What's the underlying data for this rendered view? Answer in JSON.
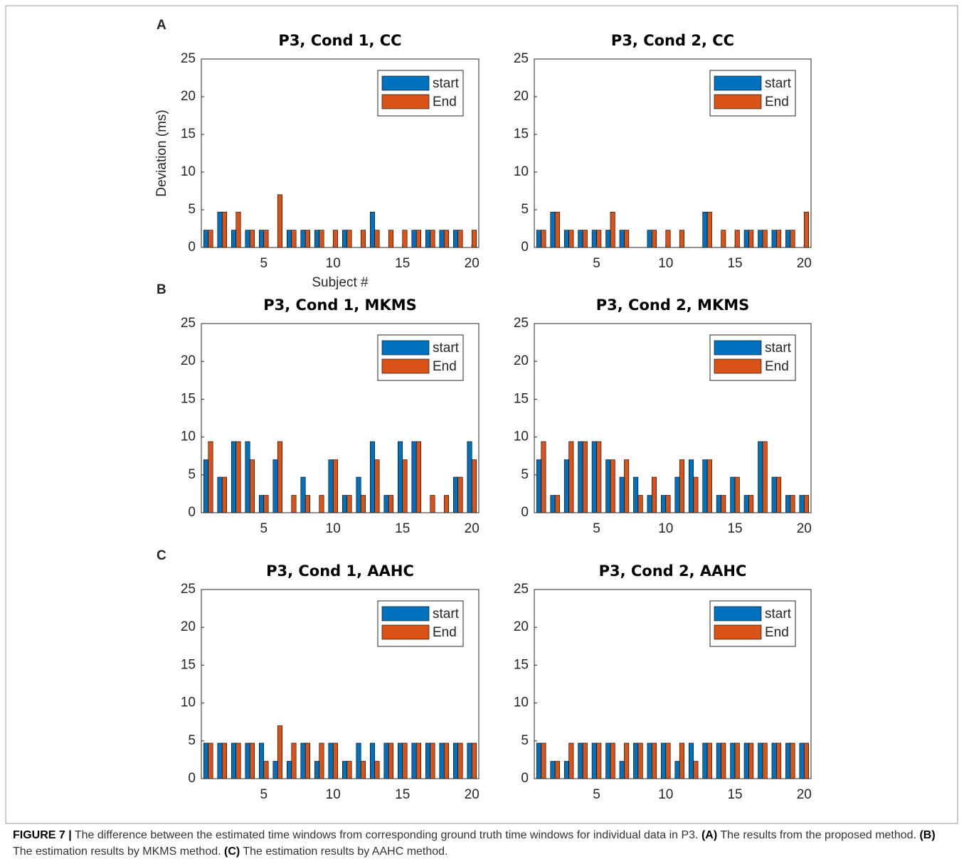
{
  "panels": [
    "A",
    "B",
    "C"
  ],
  "chart_data": [
    {
      "type": "bar",
      "title": "P3, Cond 1, CC",
      "ylabel": "Deviation (ms)",
      "xlabel": "Subject #",
      "x": [
        1,
        2,
        3,
        4,
        5,
        6,
        7,
        8,
        9,
        10,
        11,
        12,
        13,
        14,
        15,
        16,
        17,
        18,
        19,
        20
      ],
      "xlim": [
        0.5,
        20.5
      ],
      "xticks": [
        5,
        10,
        15,
        20
      ],
      "ylim": [
        0,
        25
      ],
      "yticks": [
        0,
        5,
        10,
        15,
        20,
        25
      ],
      "legend": "upper right",
      "series": [
        {
          "name": "start",
          "color": "#0072bd",
          "values": [
            2.3,
            4.7,
            2.3,
            2.3,
            2.3,
            0,
            2.3,
            2.3,
            2.3,
            0,
            2.3,
            0,
            4.7,
            0,
            0,
            2.3,
            2.3,
            2.3,
            2.3,
            0
          ]
        },
        {
          "name": "End",
          "color": "#d95319",
          "values": [
            2.3,
            4.7,
            4.7,
            2.3,
            2.3,
            7.0,
            2.3,
            2.3,
            2.3,
            2.3,
            2.3,
            2.3,
            2.3,
            2.3,
            2.3,
            2.3,
            2.3,
            2.3,
            2.3,
            2.3
          ]
        }
      ]
    },
    {
      "type": "bar",
      "title": "P3, Cond 2, CC",
      "x": [
        1,
        2,
        3,
        4,
        5,
        6,
        7,
        8,
        9,
        10,
        11,
        12,
        13,
        14,
        15,
        16,
        17,
        18,
        19,
        20
      ],
      "xlim": [
        0.5,
        20.5
      ],
      "xticks": [
        5,
        10,
        15,
        20
      ],
      "ylim": [
        0,
        25
      ],
      "yticks": [
        0,
        5,
        10,
        15,
        20,
        25
      ],
      "legend": "upper right",
      "series": [
        {
          "name": "start",
          "color": "#0072bd",
          "values": [
            2.3,
            4.7,
            2.3,
            2.3,
            2.3,
            2.3,
            2.3,
            0,
            2.3,
            0,
            0,
            0,
            4.7,
            0,
            0,
            2.3,
            2.3,
            2.3,
            2.3,
            0
          ]
        },
        {
          "name": "End",
          "color": "#d95319",
          "values": [
            2.3,
            4.7,
            2.3,
            2.3,
            2.3,
            4.7,
            2.3,
            0,
            2.3,
            2.3,
            2.3,
            0,
            4.7,
            2.3,
            2.3,
            2.3,
            2.3,
            2.3,
            2.3,
            4.7
          ]
        }
      ]
    },
    {
      "type": "bar",
      "title": "P3, Cond 1, MKMS",
      "x": [
        1,
        2,
        3,
        4,
        5,
        6,
        7,
        8,
        9,
        10,
        11,
        12,
        13,
        14,
        15,
        16,
        17,
        18,
        19,
        20
      ],
      "xlim": [
        0.5,
        20.5
      ],
      "xticks": [
        5,
        10,
        15,
        20
      ],
      "ylim": [
        0,
        25
      ],
      "yticks": [
        0,
        5,
        10,
        15,
        20,
        25
      ],
      "legend": "upper right",
      "series": [
        {
          "name": "start",
          "color": "#0072bd",
          "values": [
            7.0,
            4.7,
            9.4,
            9.4,
            2.3,
            7.0,
            0,
            4.7,
            0,
            7.0,
            2.3,
            4.7,
            9.4,
            2.3,
            9.4,
            9.4,
            0,
            0,
            4.7,
            9.4
          ]
        },
        {
          "name": "End",
          "color": "#d95319",
          "values": [
            9.4,
            4.7,
            9.4,
            7.0,
            2.3,
            9.4,
            2.3,
            2.3,
            2.3,
            7.0,
            2.3,
            2.3,
            7.0,
            2.3,
            7.0,
            9.4,
            2.3,
            2.3,
            4.7,
            7.0
          ]
        }
      ]
    },
    {
      "type": "bar",
      "title": "P3, Cond 2, MKMS",
      "x": [
        1,
        2,
        3,
        4,
        5,
        6,
        7,
        8,
        9,
        10,
        11,
        12,
        13,
        14,
        15,
        16,
        17,
        18,
        19,
        20
      ],
      "xlim": [
        0.5,
        20.5
      ],
      "xticks": [
        5,
        10,
        15,
        20
      ],
      "ylim": [
        0,
        25
      ],
      "yticks": [
        0,
        5,
        10,
        15,
        20,
        25
      ],
      "legend": "upper right",
      "series": [
        {
          "name": "start",
          "color": "#0072bd",
          "values": [
            7.0,
            2.3,
            7.0,
            9.4,
            9.4,
            7.0,
            4.7,
            4.7,
            2.3,
            2.3,
            4.7,
            7.0,
            7.0,
            2.3,
            4.7,
            2.3,
            9.4,
            4.7,
            2.3,
            2.3
          ]
        },
        {
          "name": "End",
          "color": "#d95319",
          "values": [
            9.4,
            2.3,
            9.4,
            9.4,
            9.4,
            7.0,
            7.0,
            2.3,
            4.7,
            2.3,
            7.0,
            4.7,
            7.0,
            2.3,
            4.7,
            2.3,
            9.4,
            4.7,
            2.3,
            2.3
          ]
        }
      ]
    },
    {
      "type": "bar",
      "title": "P3, Cond 1, AAHC",
      "x": [
        1,
        2,
        3,
        4,
        5,
        6,
        7,
        8,
        9,
        10,
        11,
        12,
        13,
        14,
        15,
        16,
        17,
        18,
        19,
        20
      ],
      "xlim": [
        0.5,
        20.5
      ],
      "xticks": [
        5,
        10,
        15,
        20
      ],
      "ylim": [
        0,
        25
      ],
      "yticks": [
        0,
        5,
        10,
        15,
        20,
        25
      ],
      "legend": "upper right",
      "series": [
        {
          "name": "start",
          "color": "#0072bd",
          "values": [
            4.7,
            4.7,
            4.7,
            4.7,
            4.7,
            2.3,
            2.3,
            4.7,
            2.3,
            4.7,
            2.3,
            4.7,
            4.7,
            4.7,
            4.7,
            4.7,
            4.7,
            4.7,
            4.7,
            4.7
          ]
        },
        {
          "name": "End",
          "color": "#d95319",
          "values": [
            4.7,
            4.7,
            4.7,
            4.7,
            2.3,
            7.0,
            4.7,
            4.7,
            4.7,
            4.7,
            2.3,
            2.3,
            2.3,
            4.7,
            4.7,
            4.7,
            4.7,
            4.7,
            4.7,
            4.7
          ]
        }
      ]
    },
    {
      "type": "bar",
      "title": "P3, Cond 2, AAHC",
      "x": [
        1,
        2,
        3,
        4,
        5,
        6,
        7,
        8,
        9,
        10,
        11,
        12,
        13,
        14,
        15,
        16,
        17,
        18,
        19,
        20
      ],
      "xlim": [
        0.5,
        20.5
      ],
      "xticks": [
        5,
        10,
        15,
        20
      ],
      "ylim": [
        0,
        25
      ],
      "yticks": [
        0,
        5,
        10,
        15,
        20,
        25
      ],
      "legend": "upper right",
      "series": [
        {
          "name": "start",
          "color": "#0072bd",
          "values": [
            4.7,
            2.3,
            2.3,
            4.7,
            4.7,
            4.7,
            2.3,
            4.7,
            4.7,
            4.7,
            2.3,
            4.7,
            4.7,
            4.7,
            4.7,
            4.7,
            4.7,
            4.7,
            4.7,
            4.7
          ]
        },
        {
          "name": "End",
          "color": "#d95319",
          "values": [
            4.7,
            2.3,
            4.7,
            4.7,
            4.7,
            4.7,
            4.7,
            4.7,
            4.7,
            4.7,
            4.7,
            2.3,
            4.7,
            4.7,
            4.7,
            4.7,
            4.7,
            4.7,
            4.7,
            4.7
          ]
        }
      ]
    }
  ],
  "caption": [
    {
      "text": "FIGURE 7 |",
      "bold": true
    },
    {
      "text": " The difference between the estimated time windows from corresponding ground truth time windows for individual data in P3. ",
      "bold": false
    },
    {
      "text": "(A)",
      "bold": true
    },
    {
      "text": " The results from the proposed method. ",
      "bold": false
    },
    {
      "text": "(B)",
      "bold": true
    },
    {
      "text": " The estimation results by MKMS method. ",
      "bold": false
    },
    {
      "text": "(C)",
      "bold": true
    },
    {
      "text": " The estimation results by AAHC method.",
      "bold": false
    }
  ]
}
